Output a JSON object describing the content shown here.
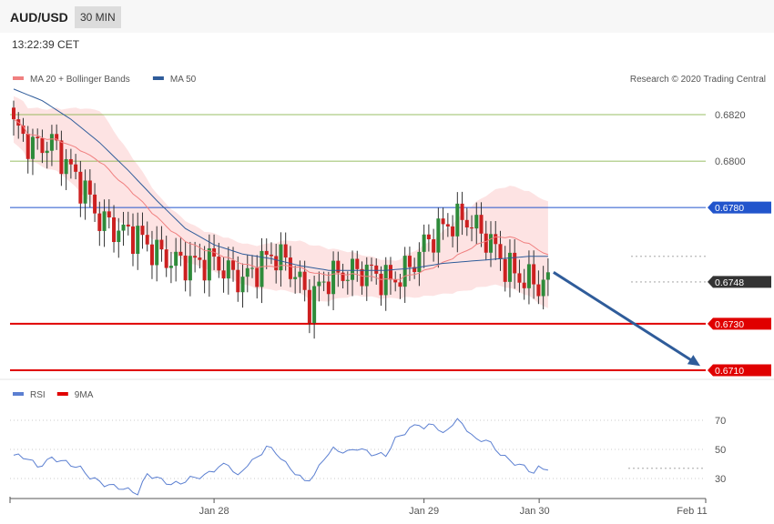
{
  "header": {
    "symbol": "AUD/USD",
    "timeframe": "30 MIN"
  },
  "timestamp": "13:22:39 CET",
  "price_legend": [
    {
      "label": "MA 20 + Bollinger Bands",
      "color": "#f08080"
    },
    {
      "label": "MA 50",
      "color": "#2f5c9a"
    }
  ],
  "credit": "Research © 2020 Trading Central",
  "rsi_legend": [
    {
      "label": "RSI",
      "color": "#5b7fd1"
    },
    {
      "label": "9MA",
      "color": "#e00000"
    }
  ],
  "colors": {
    "up": "#2e8b3a",
    "down": "#cc2020",
    "bb_fill": "#fde0e0",
    "resistance": "#2255cc",
    "support": "#e00000",
    "green_level": "#77aa33",
    "arrow": "#2f5c9a"
  },
  "chart_data": [
    {
      "type": "candlestick",
      "ylim": [
        0.6697,
        0.6833
      ],
      "x_ticks": [
        {
          "label": "Jan 28",
          "index": 42
        },
        {
          "label": "Jan 29",
          "index": 86
        },
        {
          "label": "Jan 30",
          "index": 113
        },
        {
          "label": "Feb 11",
          "index": 124
        }
      ],
      "levels": [
        {
          "value": "0.6820",
          "kind": "green"
        },
        {
          "value": "0.6800",
          "kind": "green"
        },
        {
          "value": "0.6780",
          "kind": "resistance"
        },
        {
          "value": "0.6748",
          "kind": "current"
        },
        {
          "value": "0.6730",
          "kind": "support"
        },
        {
          "value": "0.6710",
          "kind": "support"
        }
      ],
      "close_anchors": [
        [
          0,
          0.6815
        ],
        [
          4,
          0.6806
        ],
        [
          8,
          0.6808
        ],
        [
          10,
          0.6802
        ],
        [
          12,
          0.6796
        ],
        [
          15,
          0.6787
        ],
        [
          18,
          0.6775
        ],
        [
          22,
          0.677
        ],
        [
          26,
          0.6768
        ],
        [
          29,
          0.6762
        ],
        [
          33,
          0.6757
        ],
        [
          38,
          0.6756
        ],
        [
          42,
          0.6757
        ],
        [
          45,
          0.6752
        ],
        [
          48,
          0.6749
        ],
        [
          51,
          0.6754
        ],
        [
          54,
          0.676
        ],
        [
          57,
          0.6757
        ],
        [
          60,
          0.6748
        ],
        [
          62,
          0.6738
        ],
        [
          64,
          0.6746
        ],
        [
          66,
          0.675
        ],
        [
          70,
          0.6752
        ],
        [
          74,
          0.6753
        ],
        [
          77,
          0.675
        ],
        [
          79,
          0.6748
        ],
        [
          83,
          0.6754
        ],
        [
          86,
          0.6764
        ],
        [
          89,
          0.677
        ],
        [
          92,
          0.6774
        ],
        [
          95,
          0.6775
        ],
        [
          98,
          0.6769
        ],
        [
          100,
          0.6765
        ],
        [
          103,
          0.6755
        ],
        [
          106,
          0.675
        ],
        [
          110,
          0.6747
        ],
        [
          112,
          0.6748
        ]
      ],
      "ma50_anchors": [
        [
          0,
          0.6831
        ],
        [
          6,
          0.6826
        ],
        [
          12,
          0.6818
        ],
        [
          18,
          0.6808
        ],
        [
          24,
          0.6796
        ],
        [
          30,
          0.6783
        ],
        [
          36,
          0.6771
        ],
        [
          42,
          0.6764
        ],
        [
          48,
          0.676
        ],
        [
          54,
          0.6758
        ],
        [
          60,
          0.6755
        ],
        [
          66,
          0.6753
        ],
        [
          72,
          0.6753
        ],
        [
          78,
          0.6753
        ],
        [
          84,
          0.6754
        ],
        [
          90,
          0.6756
        ],
        [
          96,
          0.6757
        ],
        [
          102,
          0.6758
        ],
        [
          108,
          0.6759
        ],
        [
          112,
          0.6759
        ]
      ],
      "band_width_anchors": [
        [
          0,
          0.001
        ],
        [
          10,
          0.0014
        ],
        [
          18,
          0.0022
        ],
        [
          24,
          0.0016
        ],
        [
          30,
          0.001
        ],
        [
          40,
          0.0008
        ],
        [
          50,
          0.0009
        ],
        [
          58,
          0.0011
        ],
        [
          64,
          0.0012
        ],
        [
          72,
          0.0009
        ],
        [
          80,
          0.0008
        ],
        [
          88,
          0.0012
        ],
        [
          96,
          0.0018
        ],
        [
          104,
          0.0022
        ],
        [
          112,
          0.0023
        ]
      ],
      "forecast_target": "0.6710"
    },
    {
      "type": "line",
      "series_label": "RSI",
      "ylim": [
        20,
        80
      ],
      "y_ticks": [
        "70",
        "50",
        "30"
      ],
      "anchors": [
        [
          0,
          46
        ],
        [
          3,
          44
        ],
        [
          5,
          38
        ],
        [
          8,
          44
        ],
        [
          11,
          41
        ],
        [
          14,
          37
        ],
        [
          16,
          31
        ],
        [
          19,
          26
        ],
        [
          22,
          24
        ],
        [
          26,
          20
        ],
        [
          28,
          33
        ],
        [
          31,
          29
        ],
        [
          33,
          26
        ],
        [
          35,
          27
        ],
        [
          37,
          30
        ],
        [
          40,
          32
        ],
        [
          43,
          38
        ],
        [
          45,
          40
        ],
        [
          47,
          31
        ],
        [
          49,
          40
        ],
        [
          51,
          44
        ],
        [
          53,
          52
        ],
        [
          55,
          48
        ],
        [
          57,
          40
        ],
        [
          59,
          34
        ],
        [
          61,
          28
        ],
        [
          63,
          32
        ],
        [
          65,
          44
        ],
        [
          67,
          50
        ],
        [
          70,
          48
        ],
        [
          72,
          51
        ],
        [
          75,
          47
        ],
        [
          78,
          46
        ],
        [
          80,
          57
        ],
        [
          83,
          64
        ],
        [
          85,
          68
        ],
        [
          86,
          64
        ],
        [
          88,
          68
        ],
        [
          90,
          60
        ],
        [
          92,
          68
        ],
        [
          93,
          70
        ],
        [
          95,
          64
        ],
        [
          97,
          56
        ],
        [
          99,
          57
        ],
        [
          101,
          50
        ],
        [
          104,
          42
        ],
        [
          107,
          38
        ],
        [
          109,
          34
        ],
        [
          110,
          37
        ],
        [
          112,
          37
        ]
      ]
    }
  ]
}
